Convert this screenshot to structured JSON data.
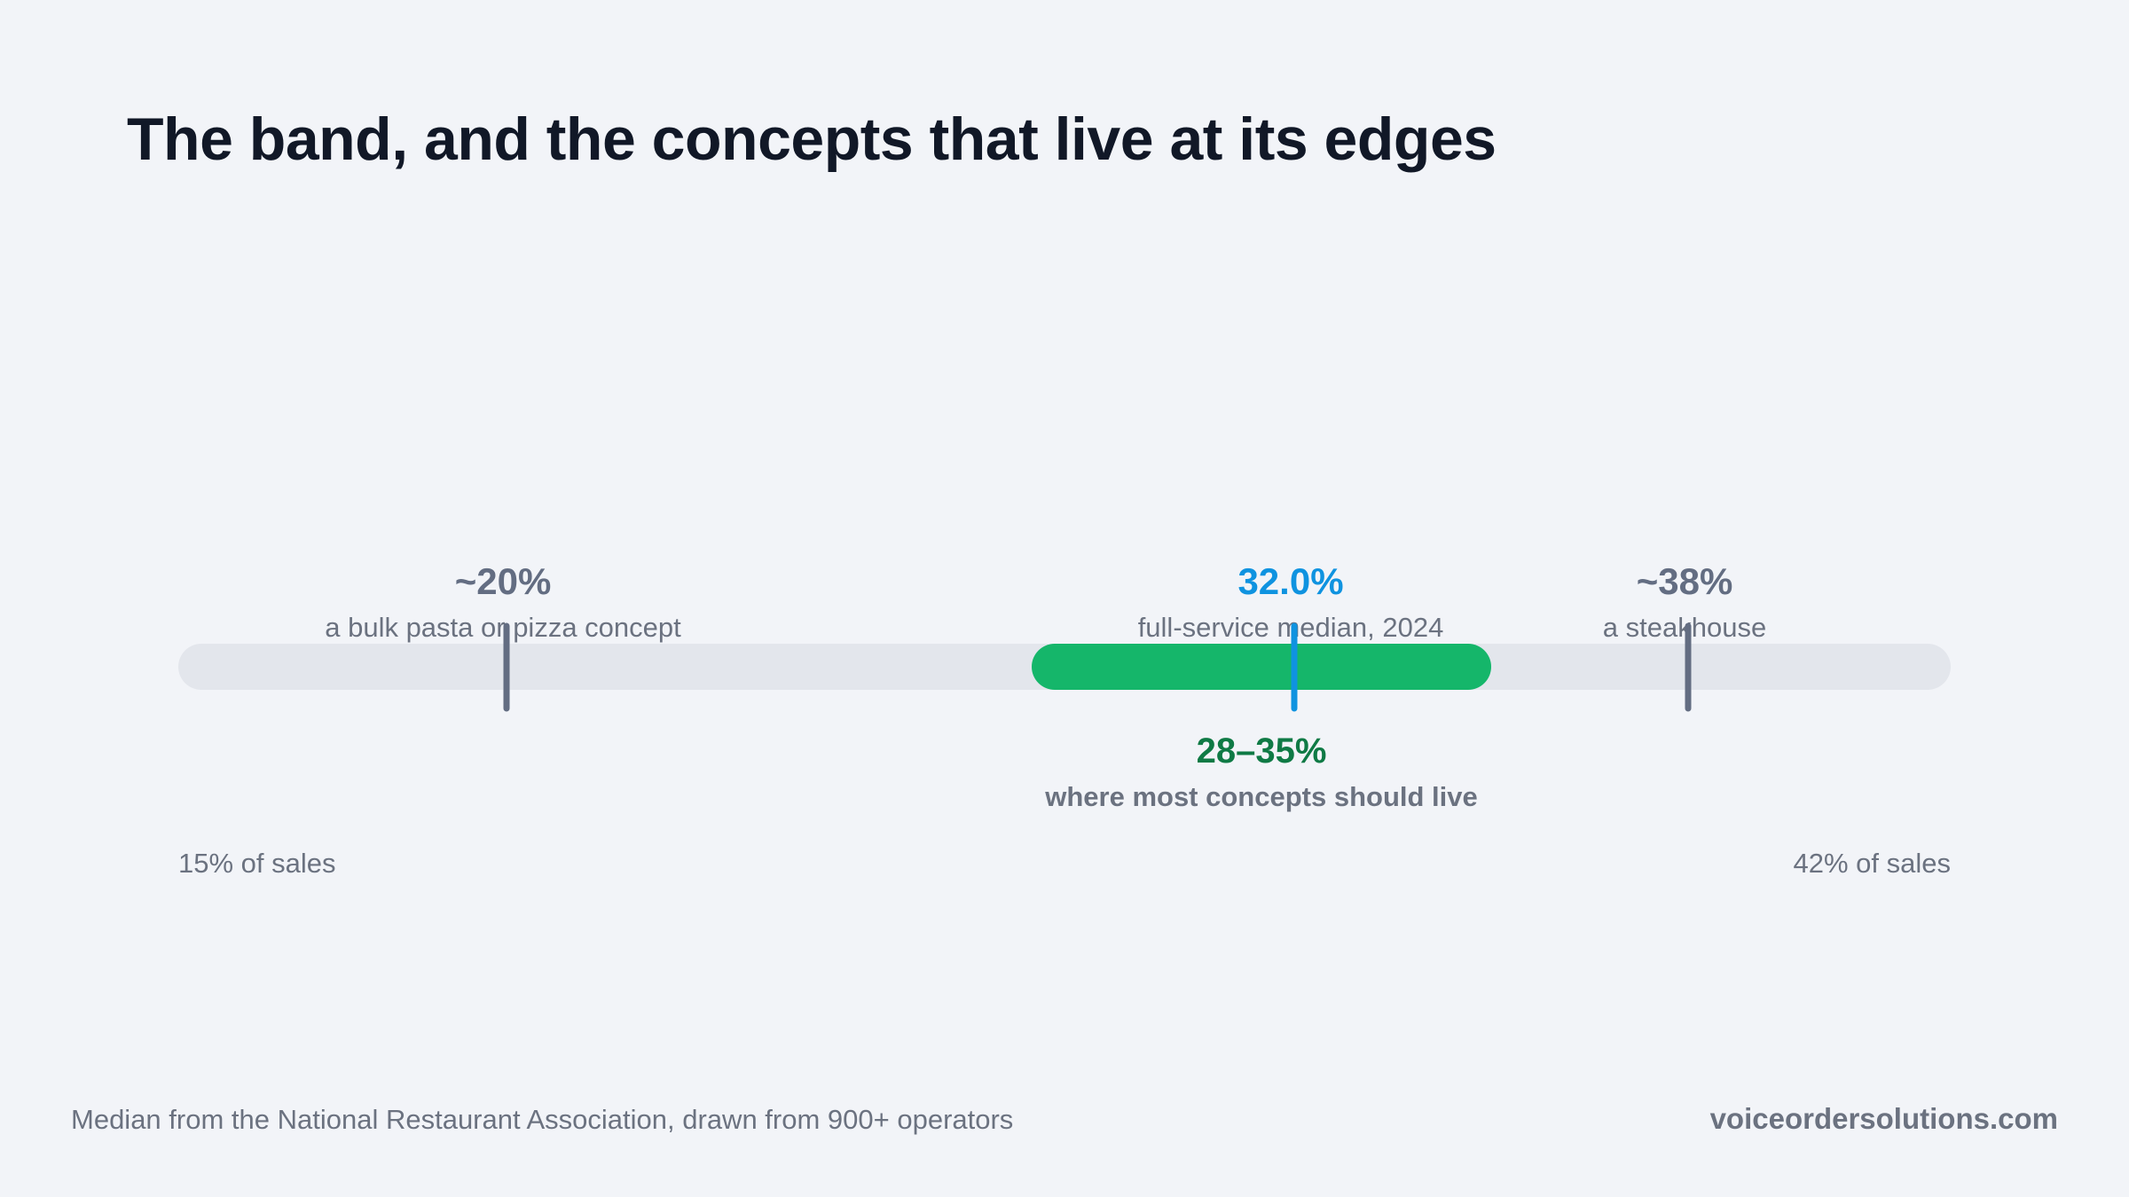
{
  "title": "The band, and the concepts that live at its edges",
  "colors": {
    "background": "#f2f4f8",
    "track": "#e3e6ec",
    "band": "#15b66a",
    "band_label": "#0f7a45",
    "median": "#0f93e0",
    "marker": "#636d82",
    "text_muted": "#6b7280",
    "title": "#111827"
  },
  "chart_data": {
    "type": "range",
    "xlim": [
      15,
      42
    ],
    "axis_labels": {
      "min": "15% of sales",
      "max": "42% of sales"
    },
    "band": {
      "low": 28,
      "high": 35,
      "value_label": "28–35%",
      "caption": "where most concepts should live"
    },
    "markers": [
      {
        "value": 20,
        "value_label": "~20%",
        "caption": "a bulk pasta or pizza concept",
        "kind": "example"
      },
      {
        "value": 32.0,
        "value_label": "32.0%",
        "caption": "full-service median, 2024",
        "kind": "median"
      },
      {
        "value": 38,
        "value_label": "~38%",
        "caption": "a steakhouse",
        "kind": "example"
      }
    ]
  },
  "footer": {
    "note": "Median from the National Restaurant Association, drawn from 900+ operators",
    "brand": "voiceordersolutions.com"
  }
}
